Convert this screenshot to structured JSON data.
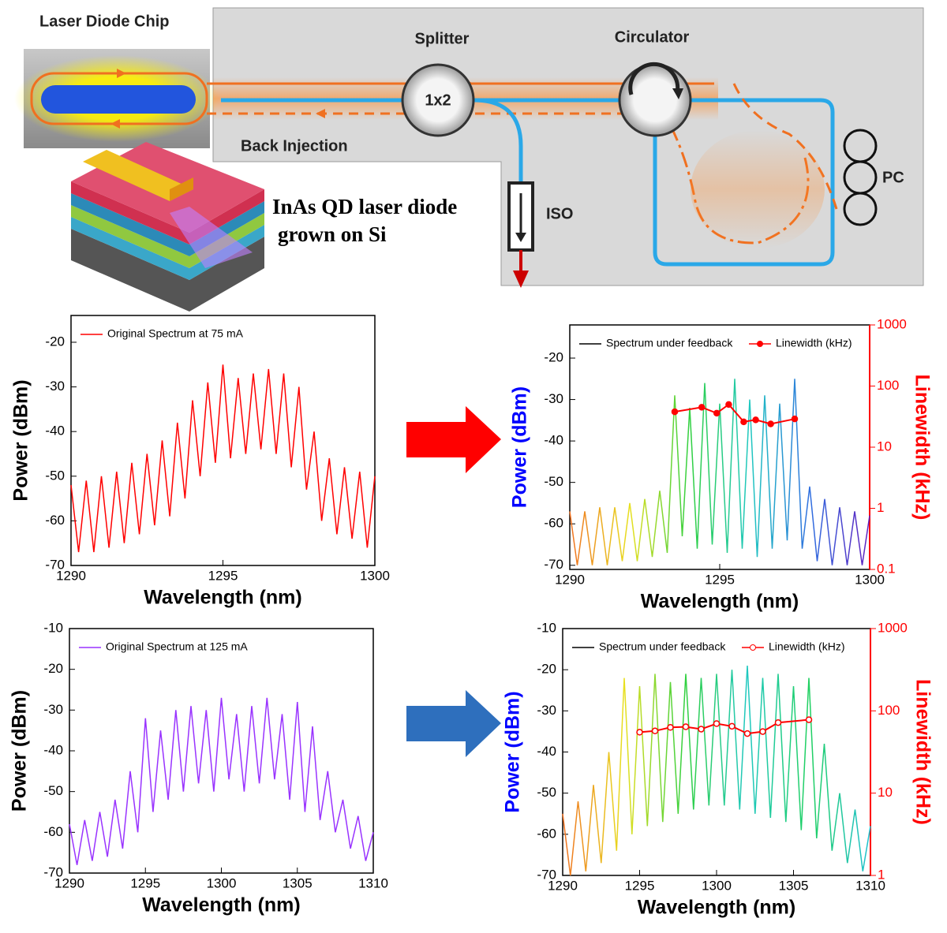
{
  "diagram": {
    "chip_label": "Laser Diode Chip",
    "splitter": "Splitter",
    "splitter_ratio": "1x2",
    "circulator": "Circulator",
    "back_injection": "Back Injection",
    "isolator": "ISO",
    "pc": "PC",
    "device_line1": "InAs QD laser diode",
    "device_line2": "grown on Si"
  },
  "chart_data": [
    {
      "type": "line",
      "xlabel": "Wavelength (nm)",
      "ylabel": "Power (dBm)",
      "ylabel_color": "#000000",
      "xlim": [
        1290,
        1300
      ],
      "xticks": [
        1290,
        1295,
        1300
      ],
      "ylim": [
        -70,
        -14
      ],
      "yticks": [
        -70,
        -60,
        -50,
        -40,
        -30,
        -20
      ],
      "legend": "upper left",
      "series": [
        {
          "name": "Original Spectrum at 75 mA",
          "color": "#ff0000",
          "x": [
            1290,
            1290.25,
            1290.5,
            1290.75,
            1291,
            1291.25,
            1291.5,
            1291.75,
            1292,
            1292.25,
            1292.5,
            1292.75,
            1293,
            1293.25,
            1293.5,
            1293.75,
            1294,
            1294.25,
            1294.5,
            1294.75,
            1295,
            1295.25,
            1295.5,
            1295.75,
            1296,
            1296.25,
            1296.5,
            1296.75,
            1297,
            1297.25,
            1297.5,
            1297.75,
            1298,
            1298.25,
            1298.5,
            1298.75,
            1299,
            1299.25,
            1299.5,
            1299.75,
            1300
          ],
          "values": [
            -52,
            -67,
            -51,
            -67,
            -50,
            -66,
            -49,
            -65,
            -47,
            -63,
            -45,
            -61,
            -42,
            -59,
            -38,
            -55,
            -33,
            -50,
            -29,
            -47,
            -25,
            -46,
            -28,
            -45,
            -27,
            -44,
            -26,
            -45,
            -27,
            -48,
            -30,
            -53,
            -40,
            -60,
            -46,
            -63,
            -48,
            -64,
            -49,
            -66,
            -50
          ]
        }
      ]
    },
    {
      "type": "line",
      "xlabel": "Wavelength (nm)",
      "ylabel": "Power (dBm)",
      "ylabel_color": "#0000ff",
      "y2label": "Linewidth (kHz)",
      "y2label_color": "#ff0000",
      "xlim": [
        1290,
        1300
      ],
      "xticks": [
        1290,
        1295,
        1300
      ],
      "ylim": [
        -71,
        -12
      ],
      "yticks": [
        -70,
        -60,
        -50,
        -40,
        -30,
        -20
      ],
      "y2lim": [
        0.1,
        1000
      ],
      "y2ticks": [
        0.1,
        1,
        10,
        100,
        1000
      ],
      "y2scale": "log",
      "legend": "upper left",
      "series": [
        {
          "name": "Spectrum under feedback",
          "legend_color": "#000000",
          "color_stops": [
            "#f07020",
            "#e8e020",
            "#30d040",
            "#20c8c0",
            "#3070e0",
            "#6020c0"
          ],
          "x": [
            1290,
            1290.25,
            1290.5,
            1290.75,
            1291,
            1291.25,
            1291.5,
            1291.75,
            1292,
            1292.25,
            1292.5,
            1292.75,
            1293,
            1293.25,
            1293.5,
            1293.75,
            1294,
            1294.25,
            1294.5,
            1294.75,
            1295,
            1295.25,
            1295.5,
            1295.75,
            1296,
            1296.25,
            1296.5,
            1296.75,
            1297,
            1297.25,
            1297.5,
            1297.75,
            1298,
            1298.25,
            1298.5,
            1298.75,
            1299,
            1299.25,
            1299.5,
            1299.75,
            1300
          ],
          "values": [
            -57,
            -70,
            -57,
            -70,
            -56,
            -70,
            -56,
            -69,
            -55,
            -69,
            -54,
            -68,
            -52,
            -67,
            -29,
            -63,
            -32,
            -66,
            -26,
            -65,
            -31,
            -67,
            -25,
            -66,
            -30,
            -68,
            -29,
            -66,
            -31,
            -64,
            -25,
            -66,
            -51,
            -69,
            -54,
            -70,
            -56,
            -70,
            -57,
            -70,
            -58
          ]
        },
        {
          "name": "Linewidth (kHz)",
          "color": "#ff0000",
          "axis": "y2",
          "marker": true,
          "x": [
            1293.5,
            1294.4,
            1294.9,
            1295.3,
            1295.8,
            1296.2,
            1296.7,
            1297.5
          ],
          "values": [
            38,
            45,
            36,
            50,
            26,
            28,
            24,
            29
          ]
        }
      ]
    },
    {
      "type": "line",
      "xlabel": "Wavelength (nm)",
      "ylabel": "Power (dBm)",
      "ylabel_color": "#000000",
      "xlim": [
        1290,
        1310
      ],
      "xticks": [
        1290,
        1295,
        1300,
        1305,
        1310
      ],
      "ylim": [
        -70,
        -10
      ],
      "yticks": [
        -70,
        -60,
        -50,
        -40,
        -30,
        -20,
        -10
      ],
      "legend": "upper left",
      "series": [
        {
          "name": "Original Spectrum at 125 mA",
          "color": "#9933ff",
          "x": [
            1290,
            1290.5,
            1291,
            1291.5,
            1292,
            1292.5,
            1293,
            1293.5,
            1294,
            1294.5,
            1295,
            1295.5,
            1296,
            1296.5,
            1297,
            1297.5,
            1298,
            1298.5,
            1299,
            1299.5,
            1300,
            1300.5,
            1301,
            1301.5,
            1302,
            1302.5,
            1303,
            1303.5,
            1304,
            1304.5,
            1305,
            1305.5,
            1306,
            1306.5,
            1307,
            1307.5,
            1308,
            1308.5,
            1309,
            1309.5,
            1310
          ],
          "values": [
            -58,
            -68,
            -57,
            -67,
            -55,
            -66,
            -52,
            -64,
            -45,
            -60,
            -32,
            -55,
            -35,
            -52,
            -30,
            -50,
            -29,
            -48,
            -30,
            -50,
            -27,
            -47,
            -31,
            -50,
            -29,
            -48,
            -27,
            -47,
            -31,
            -52,
            -28,
            -55,
            -34,
            -57,
            -45,
            -60,
            -52,
            -64,
            -56,
            -67,
            -60
          ]
        }
      ]
    },
    {
      "type": "line",
      "xlabel": "Wavelength (nm)",
      "ylabel": "Power (dBm)",
      "ylabel_color": "#0000ff",
      "y2label": "Linewidth (kHz)",
      "y2label_color": "#ff0000",
      "xlim": [
        1290,
        1310
      ],
      "xticks": [
        1290,
        1295,
        1300,
        1305,
        1310
      ],
      "ylim": [
        -70,
        -10
      ],
      "yticks": [
        -70,
        -60,
        -50,
        -40,
        -30,
        -20,
        -10
      ],
      "y2lim": [
        1,
        1000
      ],
      "y2ticks": [
        1,
        10,
        100,
        1000
      ],
      "y2scale": "log",
      "legend": "upper left",
      "series": [
        {
          "name": "Spectrum under feedback",
          "legend_color": "#000000",
          "color_stops": [
            "#f07020",
            "#e8e020",
            "#30d040",
            "#20c8c0",
            "#20d060",
            "#20c0d0"
          ],
          "x": [
            1290,
            1290.5,
            1291,
            1291.5,
            1292,
            1292.5,
            1293,
            1293.5,
            1294,
            1294.5,
            1295,
            1295.5,
            1296,
            1296.5,
            1297,
            1297.5,
            1298,
            1298.5,
            1299,
            1299.5,
            1300,
            1300.5,
            1301,
            1301.5,
            1302,
            1302.5,
            1303,
            1303.5,
            1304,
            1304.5,
            1305,
            1305.5,
            1306,
            1306.5,
            1307,
            1307.5,
            1308,
            1308.5,
            1309,
            1309.5,
            1310
          ],
          "values": [
            -55,
            -70,
            -52,
            -69,
            -48,
            -67,
            -40,
            -64,
            -22,
            -60,
            -24,
            -58,
            -21,
            -57,
            -23,
            -55,
            -21,
            -54,
            -22,
            -53,
            -21,
            -53,
            -20,
            -54,
            -19,
            -55,
            -22,
            -56,
            -21,
            -57,
            -24,
            -59,
            -22,
            -61,
            -38,
            -64,
            -50,
            -67,
            -54,
            -69,
            -58
          ]
        },
        {
          "name": "Linewidth (kHz)",
          "color": "#ff0000",
          "axis": "y2",
          "marker": true,
          "marker_fill": "#ffffff",
          "x": [
            1295,
            1296,
            1297,
            1298,
            1299,
            1300,
            1301,
            1302,
            1303,
            1304,
            1306
          ],
          "values": [
            55,
            57,
            63,
            64,
            60,
            70,
            65,
            53,
            56,
            72,
            78
          ]
        }
      ]
    }
  ]
}
